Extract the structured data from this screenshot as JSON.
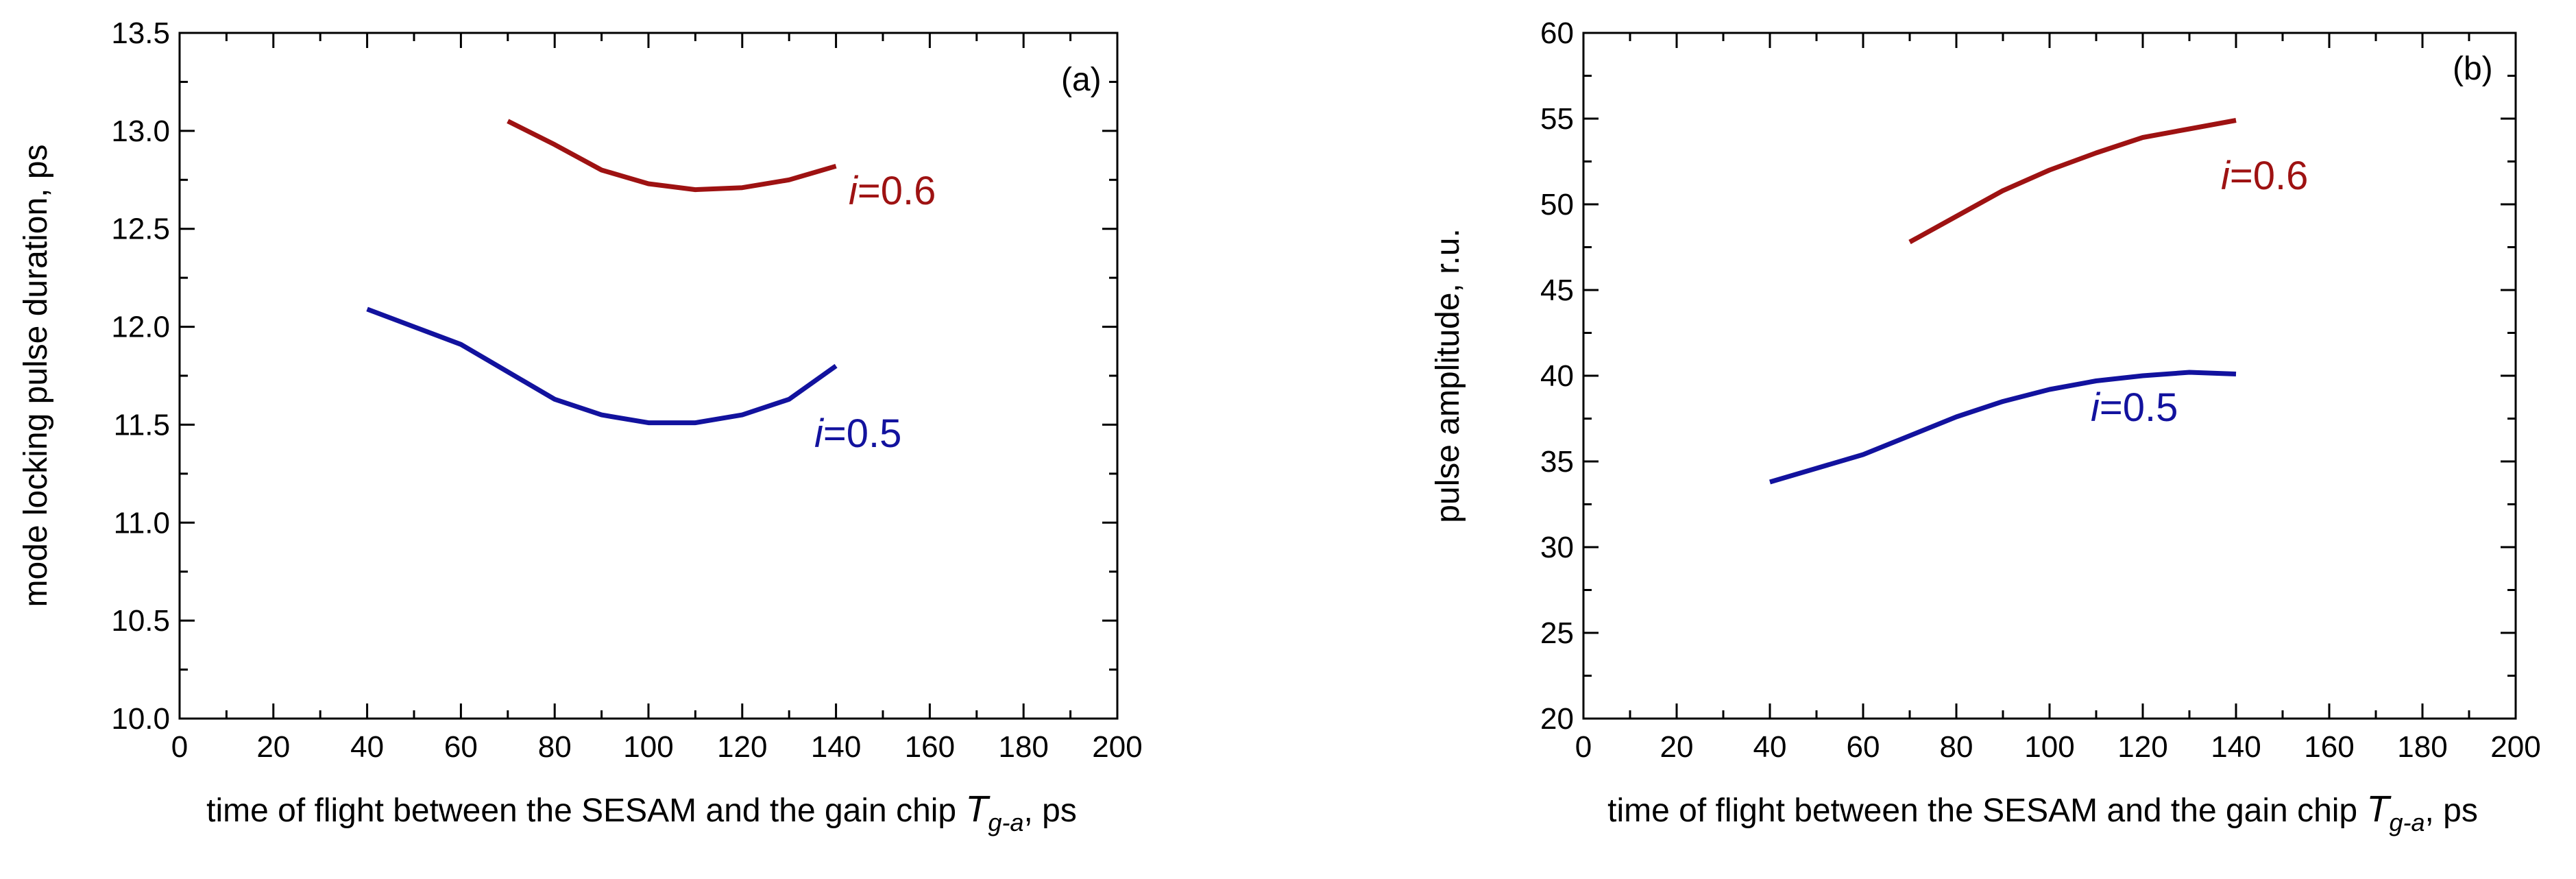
{
  "chart_data": [
    {
      "type": "line",
      "panel_label": "(a)",
      "xlabel": "time of flight between the SESAM and the gain chip ",
      "xlabel_symbol": "T",
      "xlabel_subscript": "g-a",
      "xlabel_unit": ", ps",
      "ylabel": "mode locking pulse duration, ps",
      "xlim": [
        0,
        200
      ],
      "ylim": [
        10.0,
        13.5
      ],
      "xticks": [
        "0",
        "20",
        "40",
        "60",
        "80",
        "100",
        "120",
        "140",
        "160",
        "180",
        "200"
      ],
      "yticks": [
        "10.0",
        "10.5",
        "11.0",
        "11.5",
        "12.0",
        "12.5",
        "13.0",
        "13.5"
      ],
      "grid": false,
      "series": [
        {
          "label_italic": "i",
          "label_value": "=0.6",
          "color": "#9e1212",
          "x": [
            70,
            80,
            90,
            100,
            110,
            120,
            130,
            140
          ],
          "y": [
            13.05,
            12.93,
            12.8,
            12.73,
            12.7,
            12.71,
            12.75,
            12.82
          ]
        },
        {
          "label_italic": "i",
          "label_value": "=0.5",
          "color": "#12129e",
          "x": [
            40,
            50,
            60,
            70,
            80,
            90,
            100,
            110,
            120,
            130,
            140
          ],
          "y": [
            12.09,
            12.0,
            11.91,
            11.77,
            11.63,
            11.55,
            11.51,
            11.51,
            11.55,
            11.63,
            11.8
          ]
        }
      ]
    },
    {
      "type": "line",
      "panel_label": "(b)",
      "xlabel": "time of flight between the SESAM and the gain chip ",
      "xlabel_symbol": "T",
      "xlabel_subscript": "g-a",
      "xlabel_unit": ", ps",
      "ylabel": "pulse amplitude, r.u.",
      "xlim": [
        0,
        200
      ],
      "ylim": [
        20,
        60
      ],
      "xticks": [
        "0",
        "20",
        "40",
        "60",
        "80",
        "100",
        "120",
        "140",
        "160",
        "180",
        "200"
      ],
      "yticks": [
        "20",
        "25",
        "30",
        "35",
        "40",
        "45",
        "50",
        "55",
        "60"
      ],
      "grid": false,
      "series": [
        {
          "label_italic": "i",
          "label_value": "=0.6",
          "color": "#9e1212",
          "x": [
            70,
            80,
            90,
            100,
            110,
            120,
            130,
            140
          ],
          "y": [
            47.8,
            49.3,
            50.8,
            52.0,
            53.0,
            53.9,
            54.4,
            54.9
          ]
        },
        {
          "label_italic": "i",
          "label_value": "=0.5",
          "color": "#12129e",
          "x": [
            40,
            50,
            60,
            70,
            80,
            90,
            100,
            110,
            120,
            130,
            140
          ],
          "y": [
            33.8,
            34.6,
            35.4,
            36.5,
            37.6,
            38.5,
            39.2,
            39.7,
            40.0,
            40.2,
            40.1
          ]
        }
      ]
    }
  ]
}
